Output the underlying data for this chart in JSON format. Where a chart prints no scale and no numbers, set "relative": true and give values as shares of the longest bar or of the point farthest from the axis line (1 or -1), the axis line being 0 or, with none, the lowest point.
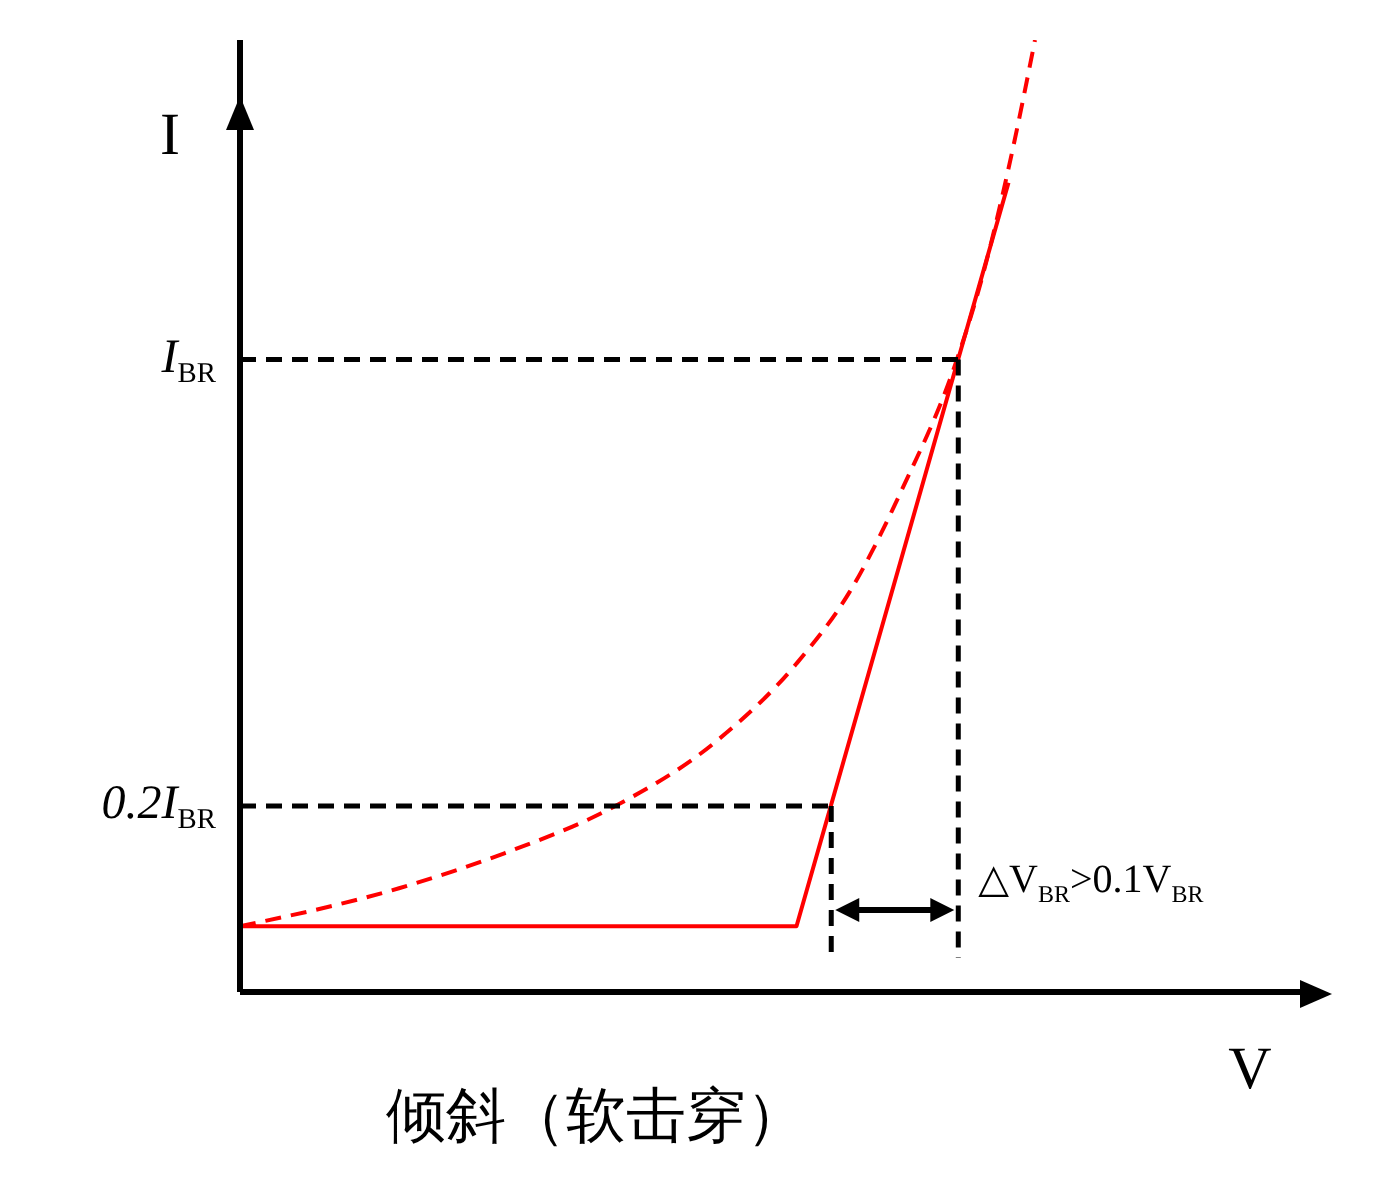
{
  "chart_data": {
    "type": "line",
    "title": "倾斜（软击穿）",
    "xlabel": "V",
    "ylabel": "I",
    "relative": true,
    "categories": [
      null,
      null,
      null,
      null,
      null,
      null,
      null,
      null,
      null,
      null,
      null,
      null,
      null,
      null,
      null,
      null,
      null,
      null,
      null,
      null,
      null,
      null,
      null,
      null,
      null,
      null,
      null,
      null,
      null,
      null,
      null,
      null,
      null,
      null,
      null,
      null,
      null,
      null,
      null,
      null,
      null
    ],
    "series": [
      {
        "color": "#ff0000",
        "line_style": "solid",
        "values": [
          0.069,
          null,
          null,
          null,
          null,
          null,
          null,
          null,
          null,
          null,
          null,
          null,
          null,
          null,
          null,
          null,
          null,
          null,
          null,
          null,
          null,
          0.069,
          null,
          null,
          null,
          null,
          null,
          null,
          null,
          0.85,
          null,
          null,
          null,
          null,
          null,
          null,
          null,
          null,
          null,
          null,
          null
        ]
      },
      {
        "color": "#ff0000",
        "line_style": "dashed",
        "values": [
          0.069,
          null,
          null,
          null,
          null,
          null,
          0.109,
          null,
          null,
          null,
          0.146,
          null,
          null,
          null,
          0.193,
          null,
          null,
          null,
          0.264,
          null,
          null,
          0.345,
          null,
          0.42,
          null,
          0.529,
          null,
          0.66,
          0.75,
          0.865,
          1.0,
          null,
          null,
          null,
          null,
          null,
          null,
          null,
          null,
          null,
          null
        ]
      }
    ],
    "ref_lines": [
      {
        "axis": "y",
        "value": 0.665,
        "label": "I$_{BR}$",
        "color": "#000000",
        "line_style": "dashed"
      },
      {
        "axis": "y",
        "value": 0.197,
        "label": "0.2I$_{BR}$",
        "color": "#000000",
        "line_style": "dashed"
      }
    ],
    "annotations": [
      "△V$_{BR}$>0.1V$_{BR}$"
    ]
  }
}
